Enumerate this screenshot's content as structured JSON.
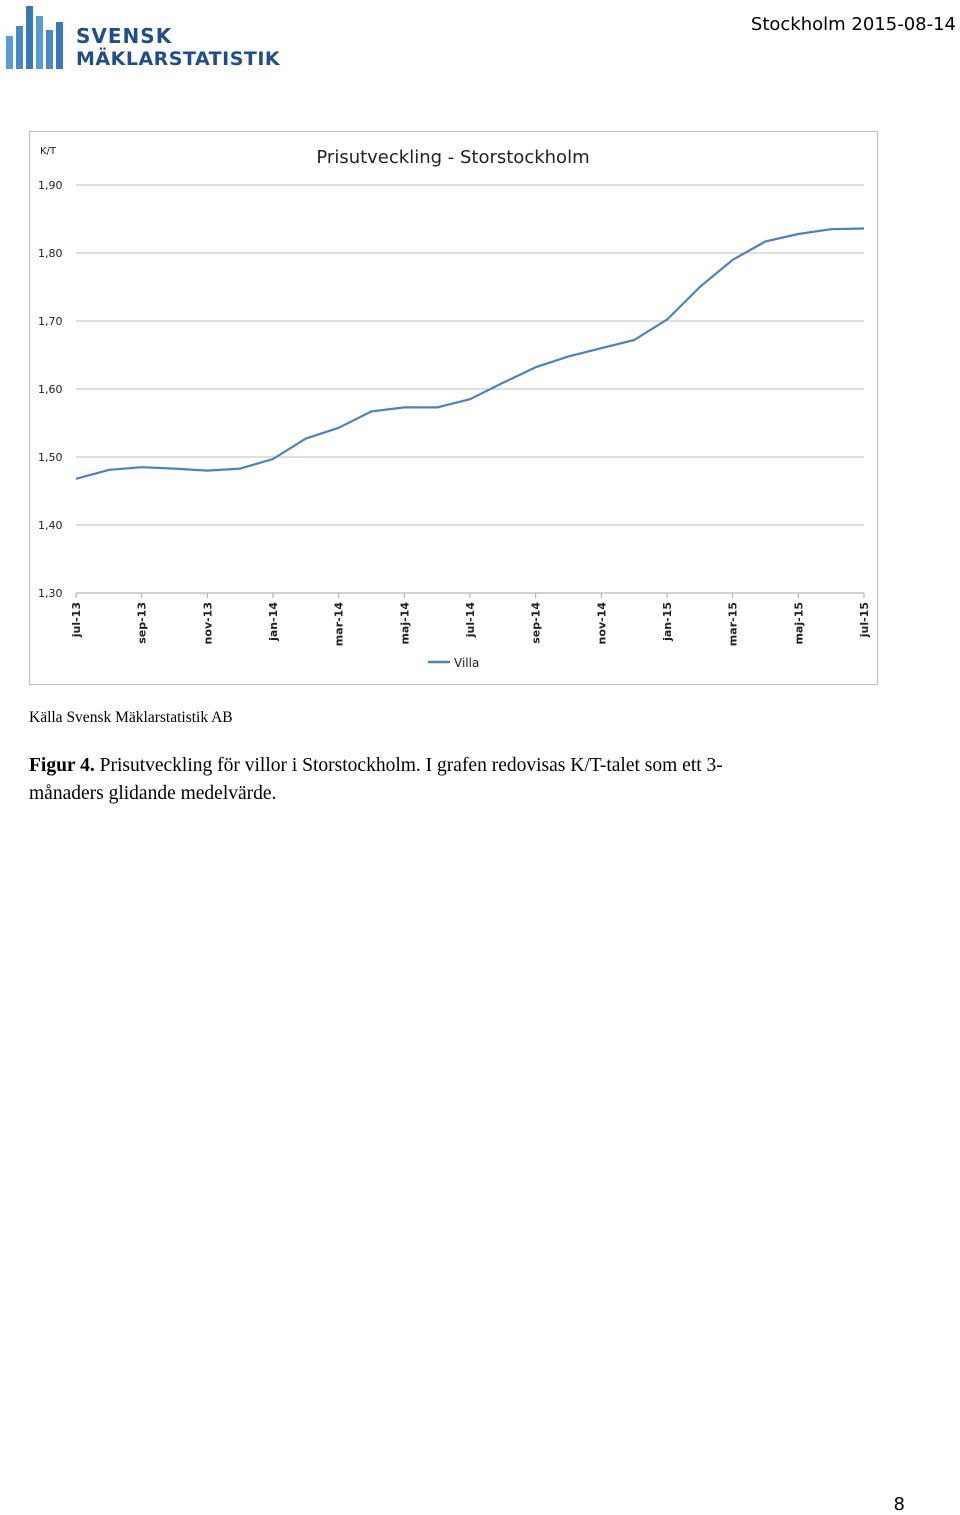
{
  "header": {
    "logo_line1": "SVENSK",
    "logo_line2": "MÄKLARSTATISTIK",
    "date": "Stockholm 2015-08-14",
    "brand_color": "#1f4f86",
    "logo_bar_color": "#5b9bd5"
  },
  "chart_data": {
    "type": "line",
    "title": "Prisutveckling - Storstockholm",
    "ylabel": "K/T",
    "ylim": [
      1.3,
      1.9
    ],
    "yticks": [
      "1,30",
      "1,40",
      "1,50",
      "1,60",
      "1,70",
      "1,80",
      "1,90"
    ],
    "ytick_values": [
      1.3,
      1.4,
      1.5,
      1.6,
      1.7,
      1.8,
      1.9
    ],
    "x": [
      "jul-13",
      "aug-13",
      "sep-13",
      "okt-13",
      "nov-13",
      "dec-13",
      "jan-14",
      "feb-14",
      "mar-14",
      "apr-14",
      "maj-14",
      "jun-14",
      "jul-14",
      "aug-14",
      "sep-14",
      "okt-14",
      "nov-14",
      "dec-14",
      "jan-15",
      "feb-15",
      "mar-15",
      "apr-15",
      "maj-15",
      "jun-15",
      "jul-15"
    ],
    "xtick_labels": [
      "jul-13",
      "sep-13",
      "nov-13",
      "jan-14",
      "mar-14",
      "maj-14",
      "jul-14",
      "sep-14",
      "nov-14",
      "jan-15",
      "mar-15",
      "maj-15",
      "jul-15"
    ],
    "series": [
      {
        "name": "Villa",
        "color": "#4f81bd",
        "values": [
          1.468,
          1.481,
          1.485,
          1.483,
          1.48,
          1.483,
          1.497,
          1.527,
          1.543,
          1.567,
          1.573,
          1.573,
          1.585,
          1.609,
          1.632,
          1.648,
          1.66,
          1.672,
          1.702,
          1.75,
          1.79,
          1.817,
          1.828,
          1.835,
          1.836
        ]
      }
    ],
    "grid": true,
    "legend": "bottom"
  },
  "source_text": "Källa Svensk Mäklarstatistik AB",
  "caption": {
    "label": "Figur 4.",
    "text": " Prisutveckling för villor i Storstockholm. I grafen redovisas K/T-talet som ett 3-månaders glidande medelvärde."
  },
  "page_number": "8"
}
